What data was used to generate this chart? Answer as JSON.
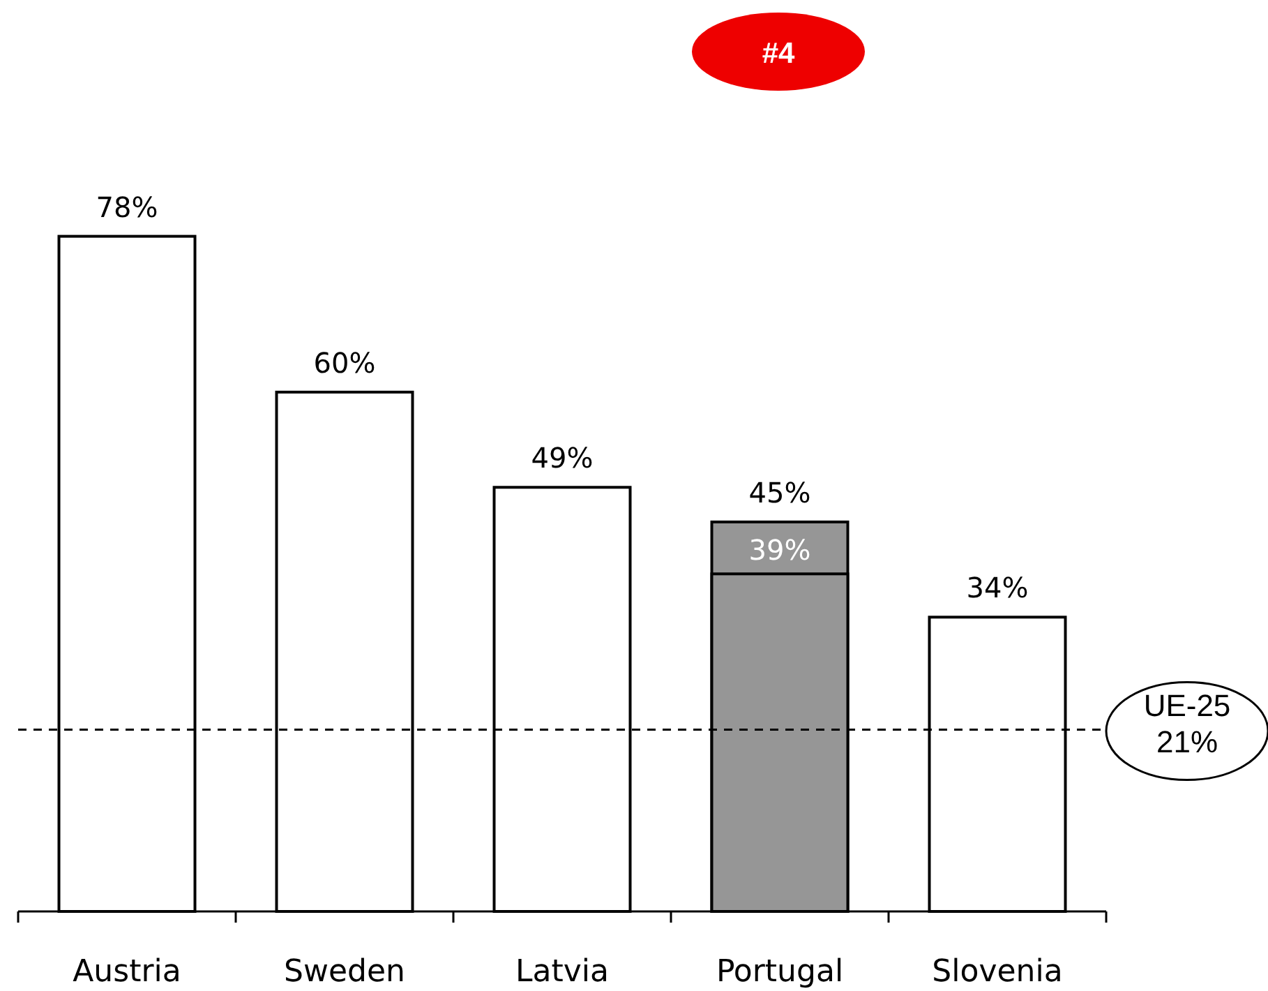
{
  "chart_data": {
    "type": "bar",
    "categories": [
      "Austria",
      "Sweden",
      "Latvia",
      "Portugal",
      "Slovenia"
    ],
    "series": [
      {
        "colors": [
          "#ffffff",
          "#ffffff",
          "#ffffff",
          "#969696",
          "#ffffff"
        ],
        "values": [
          78,
          60,
          49,
          45,
          34
        ],
        "value_labels": [
          "78%",
          "60%",
          "49%",
          "45%",
          "34%"
        ]
      },
      {
        "color": "#969696",
        "values": [
          null,
          null,
          null,
          39,
          null
        ],
        "value_labels": [
          null,
          null,
          null,
          "39%",
          null
        ]
      }
    ],
    "ref_lines": [
      {
        "axis": "y",
        "value": 21,
        "label": "UE-25\n21%",
        "color": "#000000",
        "line_style": "dashed"
      }
    ],
    "annotations": [
      "#4"
    ]
  }
}
